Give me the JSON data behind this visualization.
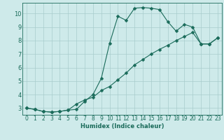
{
  "xlabel": "Humidex (Indice chaleur)",
  "background_color": "#ceeaea",
  "grid_color": "#a8cccc",
  "line_color": "#1a6b5a",
  "xlim_min": -0.5,
  "xlim_max": 23.5,
  "ylim_min": 2.5,
  "ylim_max": 10.8,
  "yticks": [
    3,
    4,
    5,
    6,
    7,
    8,
    9,
    10
  ],
  "xticks": [
    0,
    1,
    2,
    3,
    4,
    5,
    6,
    7,
    8,
    9,
    10,
    11,
    12,
    13,
    14,
    15,
    16,
    17,
    18,
    19,
    20,
    21,
    22,
    23
  ],
  "line1_x": [
    0,
    1,
    2,
    3,
    4,
    5,
    6,
    7,
    8,
    9,
    10,
    11,
    12,
    13,
    14,
    15,
    16,
    17,
    18,
    19,
    20,
    21,
    22,
    23
  ],
  "line1_y": [
    3.0,
    2.9,
    2.75,
    2.7,
    2.75,
    2.85,
    2.9,
    3.5,
    4.0,
    5.2,
    7.8,
    9.8,
    9.5,
    10.4,
    10.45,
    10.4,
    10.3,
    9.4,
    8.7,
    9.2,
    9.0,
    7.75,
    7.75,
    8.2
  ],
  "line2_x": [
    0,
    1,
    2,
    3,
    4,
    5,
    6,
    7,
    8,
    9,
    10,
    11,
    12,
    13,
    14,
    15,
    16,
    17,
    18,
    19,
    20,
    21,
    22,
    23
  ],
  "line2_y": [
    3.0,
    2.9,
    2.75,
    2.7,
    2.75,
    2.85,
    3.3,
    3.6,
    3.8,
    4.3,
    4.6,
    5.1,
    5.6,
    6.2,
    6.6,
    7.0,
    7.35,
    7.65,
    8.0,
    8.3,
    8.6,
    7.75,
    7.75,
    8.2
  ],
  "xlabel_fontsize": 6,
  "tick_fontsize": 5.5
}
